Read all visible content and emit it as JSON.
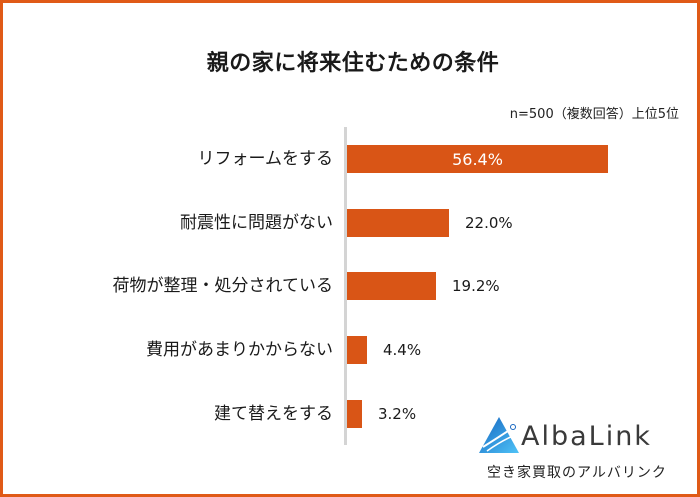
{
  "title": "親の家に将来住むための条件",
  "note": "n=500（複数回答）上位5位",
  "colors": {
    "bar": "#d95516",
    "frame": "#e05a17",
    "axis": "#d4d4d4",
    "logo_blue": "#1e88d8"
  },
  "logo": {
    "name": "AlbaLink",
    "subtitle": "空き家買取のアルバリンク",
    "icon": "triangle-mountain-icon"
  },
  "chart_data": {
    "type": "bar",
    "orientation": "horizontal",
    "title": "親の家に将来住むための条件",
    "subtitle": "n=500（複数回答）上位5位",
    "categories": [
      "リフォームをする",
      "耐震性に問題がない",
      "荷物が整理・処分されている",
      "費用があまりかからない",
      "建て替えをする"
    ],
    "values": [
      56.4,
      22.0,
      19.2,
      4.4,
      3.2
    ],
    "value_labels": [
      "56.4%",
      "22.0%",
      "19.2%",
      "4.4%",
      "3.2%"
    ],
    "unit": "%",
    "xlabel": "",
    "ylabel": "",
    "grid": false,
    "legend": null
  }
}
